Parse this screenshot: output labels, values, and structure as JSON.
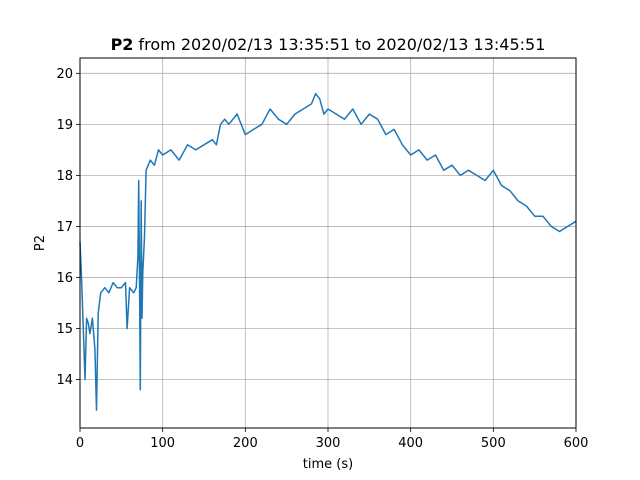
{
  "chart_data": {
    "type": "line",
    "title": {
      "bold": "P2",
      "rest": " from 2020/02/13 13:35:51 to 2020/02/13 13:45:51"
    },
    "xlabel": "time (s)",
    "ylabel": "P2",
    "xlim": [
      0,
      600
    ],
    "ylim": [
      13.05,
      20.3
    ],
    "xticks": [
      0,
      100,
      200,
      300,
      400,
      500,
      600
    ],
    "yticks": [
      14,
      15,
      16,
      17,
      18,
      19,
      20
    ],
    "grid": true,
    "line_color": "#1f77b4",
    "series": [
      {
        "x": [
          0,
          2,
          4,
          6,
          8,
          10,
          12,
          15,
          18,
          20,
          22,
          25,
          30,
          35,
          40,
          45,
          50,
          55,
          57,
          60,
          65,
          68,
          70,
          71,
          72,
          73,
          74,
          75,
          76,
          78,
          80,
          85,
          90,
          95,
          100,
          110,
          120,
          130,
          140,
          150,
          160,
          165,
          170,
          175,
          180,
          190,
          200,
          210,
          220,
          230,
          240,
          250,
          260,
          270,
          280,
          285,
          290,
          295,
          300,
          310,
          320,
          330,
          340,
          350,
          360,
          370,
          380,
          390,
          400,
          410,
          420,
          430,
          440,
          450,
          460,
          470,
          480,
          490,
          500,
          510,
          520,
          530,
          540,
          550,
          560,
          570,
          580,
          590,
          600
        ],
        "y": [
          16.7,
          15.9,
          15.0,
          14.0,
          15.2,
          15.1,
          14.9,
          15.2,
          14.6,
          13.4,
          15.3,
          15.7,
          15.8,
          15.7,
          15.9,
          15.8,
          15.8,
          15.9,
          15.0,
          15.8,
          15.7,
          15.8,
          16.4,
          17.9,
          16.0,
          13.8,
          17.5,
          15.2,
          16.1,
          16.8,
          18.1,
          18.3,
          18.2,
          18.5,
          18.4,
          18.5,
          18.3,
          18.6,
          18.5,
          18.6,
          18.7,
          18.6,
          19.0,
          19.1,
          19.0,
          19.2,
          18.8,
          18.9,
          19.0,
          19.3,
          19.1,
          19.0,
          19.2,
          19.3,
          19.4,
          19.6,
          19.5,
          19.2,
          19.3,
          19.2,
          19.1,
          19.3,
          19.0,
          19.2,
          19.1,
          18.8,
          18.9,
          18.6,
          18.4,
          18.5,
          18.3,
          18.4,
          18.1,
          18.2,
          18.0,
          18.1,
          18.0,
          17.9,
          18.1,
          17.8,
          17.7,
          17.5,
          17.4,
          17.2,
          17.2,
          17.0,
          16.9,
          17.0,
          17.1
        ]
      }
    ]
  }
}
